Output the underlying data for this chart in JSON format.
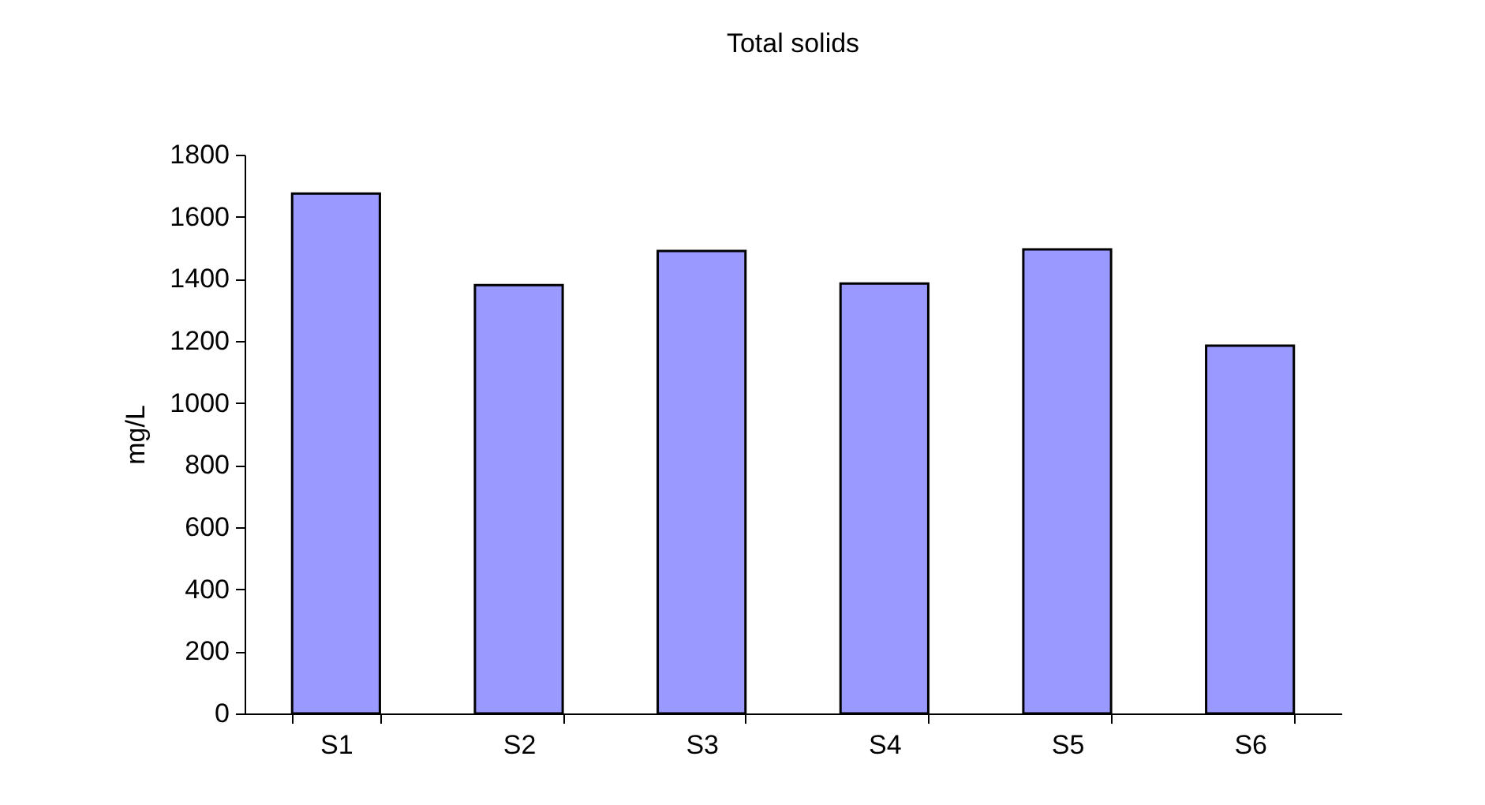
{
  "chart_data": {
    "type": "bar",
    "title": "Total solids",
    "ylabel": "mg/L",
    "categories": [
      "S1",
      "S2",
      "S3",
      "S4",
      "S5",
      "S6"
    ],
    "values": [
      1675,
      1380,
      1490,
      1385,
      1495,
      1185
    ],
    "color": "#9999ff",
    "ylim": [
      0,
      1800
    ],
    "yticks": [
      0,
      200,
      400,
      600,
      800,
      1000,
      1200,
      1400,
      1600,
      1800
    ]
  }
}
